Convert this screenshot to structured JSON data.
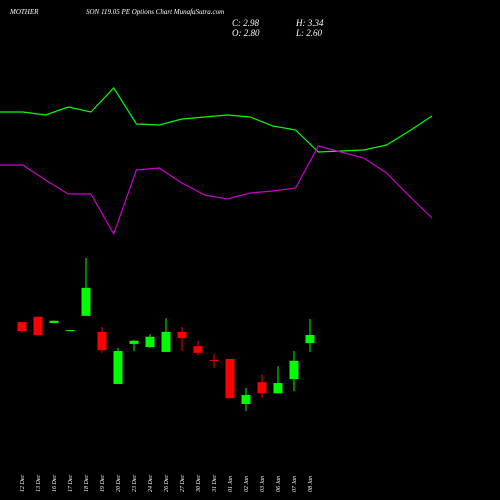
{
  "header": {
    "left": "MOTHER",
    "title": "SON 119.05 PE Options Chart MunafaSutra.com",
    "ohlc": [
      "C: 2.98",
      "H: 3.34",
      "O: 2.80",
      "L: 2.60"
    ]
  },
  "chart_data": [
    {
      "type": "line",
      "categories": [
        null,
        null,
        null,
        null,
        null,
        null,
        null,
        null,
        null,
        null,
        null,
        null,
        null,
        null,
        null,
        null,
        null,
        null,
        null,
        null
      ],
      "ylim": [
        0,
        170
      ],
      "series": [
        {
          "color": "#00ff00",
          "values": [
            138,
            138,
            135,
            143,
            138,
            162,
            126,
            125,
            131,
            133,
            135,
            133,
            124,
            120,
            98,
            99,
            100,
            105,
            119,
            134
          ]
        },
        {
          "color": "#cc00cc",
          "values": [
            85,
            85,
            70,
            56,
            56,
            16,
            80,
            82,
            67,
            55,
            51,
            57,
            59,
            62,
            104,
            98,
            92,
            77,
            54,
            32
          ]
        }
      ]
    },
    {
      "type": "candlestick",
      "categories": [
        "12 Dec",
        "13 Dec",
        "16 Dec",
        "17 Dec",
        "18 Dec",
        "19 Dec",
        "20 Dec",
        "23 Dec",
        "24 Dec",
        "26 Dec",
        "27 Dec",
        "30 Dec",
        "31 Dec",
        "01 Jan",
        "02 Jan",
        "03 Jan",
        "06 Jan",
        "07 Jan",
        "08 Jan"
      ],
      "open": [
        3.27,
        3.39,
        3.25,
        3.07,
        3.41,
        3.05,
        1.88,
        2.78,
        2.71,
        2.6,
        3.05,
        2.73,
        2.42,
        2.44,
        1.43,
        1.92,
        1.67,
        1.99,
        2.8
      ],
      "close": [
        3.07,
        2.98,
        3.3,
        3.09,
        4.04,
        2.64,
        2.62,
        2.85,
        2.94,
        3.05,
        2.91,
        2.58,
        2.4,
        1.56,
        1.63,
        1.67,
        1.9,
        2.4,
        2.98
      ],
      "high": [
        3.27,
        3.39,
        3.3,
        3.09,
        4.71,
        3.16,
        2.69,
        2.87,
        3.0,
        3.36,
        3.16,
        2.85,
        2.55,
        2.44,
        1.79,
        2.1,
        2.28,
        2.62,
        3.34
      ],
      "low": [
        3.03,
        2.98,
        3.25,
        3.07,
        3.41,
        2.58,
        1.88,
        2.62,
        2.69,
        2.6,
        2.62,
        2.53,
        2.24,
        1.56,
        1.27,
        1.56,
        1.67,
        1.72,
        2.6
      ],
      "up_color": "#00ff00",
      "down_color": "#ff0000",
      "ylim": [
        1.07,
        4.89
      ]
    }
  ]
}
